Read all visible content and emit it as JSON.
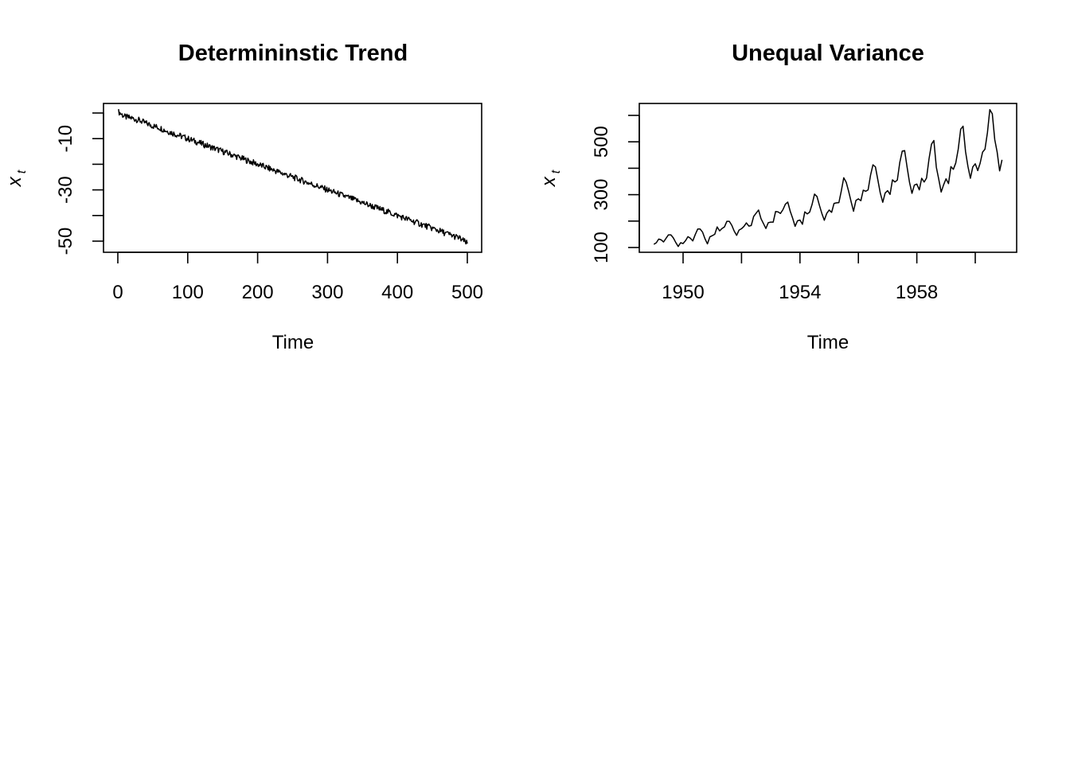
{
  "chart_data": [
    {
      "type": "line",
      "title": "Determininstic Trend",
      "xlabel": "Time",
      "ylabel": "x",
      "ylabel_subscript": "t",
      "xlim": [
        1,
        500
      ],
      "ylim": [
        -53,
        1
      ],
      "xticks": [
        0,
        100,
        200,
        300,
        400,
        500
      ],
      "yticks": [
        -50,
        -40,
        -30,
        -20,
        -10,
        0
      ],
      "ytick_labels": [
        "-50",
        "",
        "-30",
        "",
        "-10",
        ""
      ],
      "series": [
        {
          "description": "x_t = -0.1*t + noise, sampled",
          "x": [
            1,
            10,
            20,
            30,
            40,
            50,
            60,
            70,
            80,
            90,
            100,
            110,
            120,
            130,
            140,
            150,
            160,
            170,
            180,
            190,
            200,
            210,
            220,
            230,
            240,
            250,
            260,
            270,
            280,
            290,
            300,
            310,
            320,
            330,
            340,
            350,
            360,
            370,
            380,
            390,
            400,
            410,
            420,
            430,
            440,
            450,
            460,
            470,
            480,
            490,
            500
          ],
          "y": [
            0.5,
            -1.5,
            -2.0,
            -2.8,
            -4.0,
            -5.0,
            -5.8,
            -7.0,
            -8.0,
            -9.0,
            -10.0,
            -11.0,
            -12.0,
            -13.0,
            -14.0,
            -15.0,
            -16.0,
            -17.0,
            -18.0,
            -19.0,
            -20.0,
            -21.0,
            -22.0,
            -23.0,
            -24.0,
            -25.0,
            -26.0,
            -27.0,
            -28.0,
            -29.0,
            -30.0,
            -31.0,
            -32.0,
            -33.0,
            -34.0,
            -35.0,
            -36.0,
            -37.0,
            -38.0,
            -39.0,
            -40.0,
            -41.0,
            -42.0,
            -43.0,
            -44.0,
            -45.0,
            -46.0,
            -47.0,
            -48.0,
            -49.0,
            -51.0
          ]
        }
      ]
    },
    {
      "type": "line",
      "title": "Unequal Variance",
      "xlabel": "Time",
      "ylabel": "x",
      "ylabel_subscript": "t",
      "xlim": [
        1948.6,
        1961.6
      ],
      "ylim": [
        100,
        630
      ],
      "xticks": [
        1950,
        1952,
        1954,
        1956,
        1958,
        1960
      ],
      "xtick_labels": [
        "1950",
        "",
        "1954",
        "",
        "1958",
        ""
      ],
      "yticks": [
        100,
        200,
        300,
        400,
        500,
        600
      ],
      "ytick_labels": [
        "100",
        "",
        "300",
        "",
        "500",
        ""
      ],
      "series": [
        {
          "start": 1949,
          "frequency": 12,
          "values": [
            112,
            118,
            132,
            129,
            121,
            135,
            148,
            148,
            136,
            119,
            104,
            118,
            115,
            126,
            141,
            135,
            125,
            149,
            170,
            170,
            158,
            133,
            114,
            140,
            145,
            150,
            178,
            163,
            172,
            178,
            199,
            199,
            184,
            162,
            146,
            166,
            171,
            180,
            193,
            181,
            183,
            218,
            230,
            242,
            209,
            191,
            172,
            194,
            196,
            196,
            236,
            235,
            229,
            243,
            264,
            272,
            237,
            211,
            180,
            201,
            204,
            188,
            235,
            227,
            234,
            264,
            302,
            293,
            259,
            229,
            203,
            229,
            242,
            233,
            267,
            269,
            270,
            315,
            364,
            347,
            312,
            274,
            237,
            278,
            284,
            277,
            317,
            313,
            318,
            374,
            413,
            405,
            355,
            306,
            271,
            306,
            315,
            301,
            356,
            348,
            355,
            422,
            465,
            467,
            404,
            347,
            305,
            336,
            340,
            318,
            362,
            348,
            363,
            435,
            491,
            505,
            404,
            359,
            310,
            337,
            360,
            342,
            406,
            396,
            420,
            472,
            548,
            559,
            463,
            407,
            362,
            405,
            417,
            391,
            419,
            461,
            472,
            535,
            622,
            606,
            508,
            461,
            390,
            432
          ]
        }
      ]
    }
  ]
}
